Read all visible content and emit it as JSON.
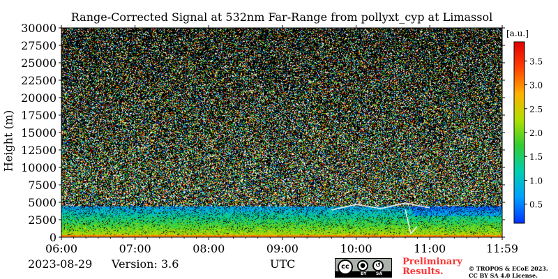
{
  "chart_data": {
    "type": "heatmap",
    "title": "Range-Corrected Signal at 532nm Far-Range from pollyxt_cyp at Limassol",
    "ylabel": "Height (m)",
    "xlabel": "UTC",
    "x_range": [
      "06:00",
      "11:59"
    ],
    "y_range": [
      0,
      30000
    ],
    "x_ticks": [
      "06:00",
      "07:00",
      "08:00",
      "09:00",
      "10:00",
      "11:00",
      "11:59"
    ],
    "y_ticks": [
      0,
      2500,
      5000,
      7500,
      10000,
      12500,
      15000,
      17500,
      20000,
      22500,
      25000,
      27500,
      30000
    ],
    "colorbar": {
      "unit": "[a.u.]",
      "range": [
        0.1,
        3.9
      ],
      "ticks": [
        0.5,
        1.0,
        1.5,
        2.0,
        2.5,
        3.0,
        3.5
      ],
      "colors": [
        "#0033ff",
        "#00a0ff",
        "#00cfb0",
        "#33cc33",
        "#b0e000",
        "#ffb000",
        "#ff4000",
        "#e00000"
      ]
    },
    "features": {
      "boundary_layer_top_m": 4500,
      "surface_layer_top_m": 400,
      "cloud_time_window": [
        "10:40",
        "10:45"
      ]
    }
  },
  "footer": {
    "date": "2023-08-29",
    "version": "Version: 3.6",
    "utc_label": "UTC",
    "cc_label": "cc",
    "cc_by": "BY",
    "cc_sa": "SA",
    "preliminary_line1": "Preliminary",
    "preliminary_line2": "Results.",
    "copyright_line1": "© TROPOS & ECoE 2023.",
    "copyright_line2": "CC BY SA 4.0 License."
  }
}
